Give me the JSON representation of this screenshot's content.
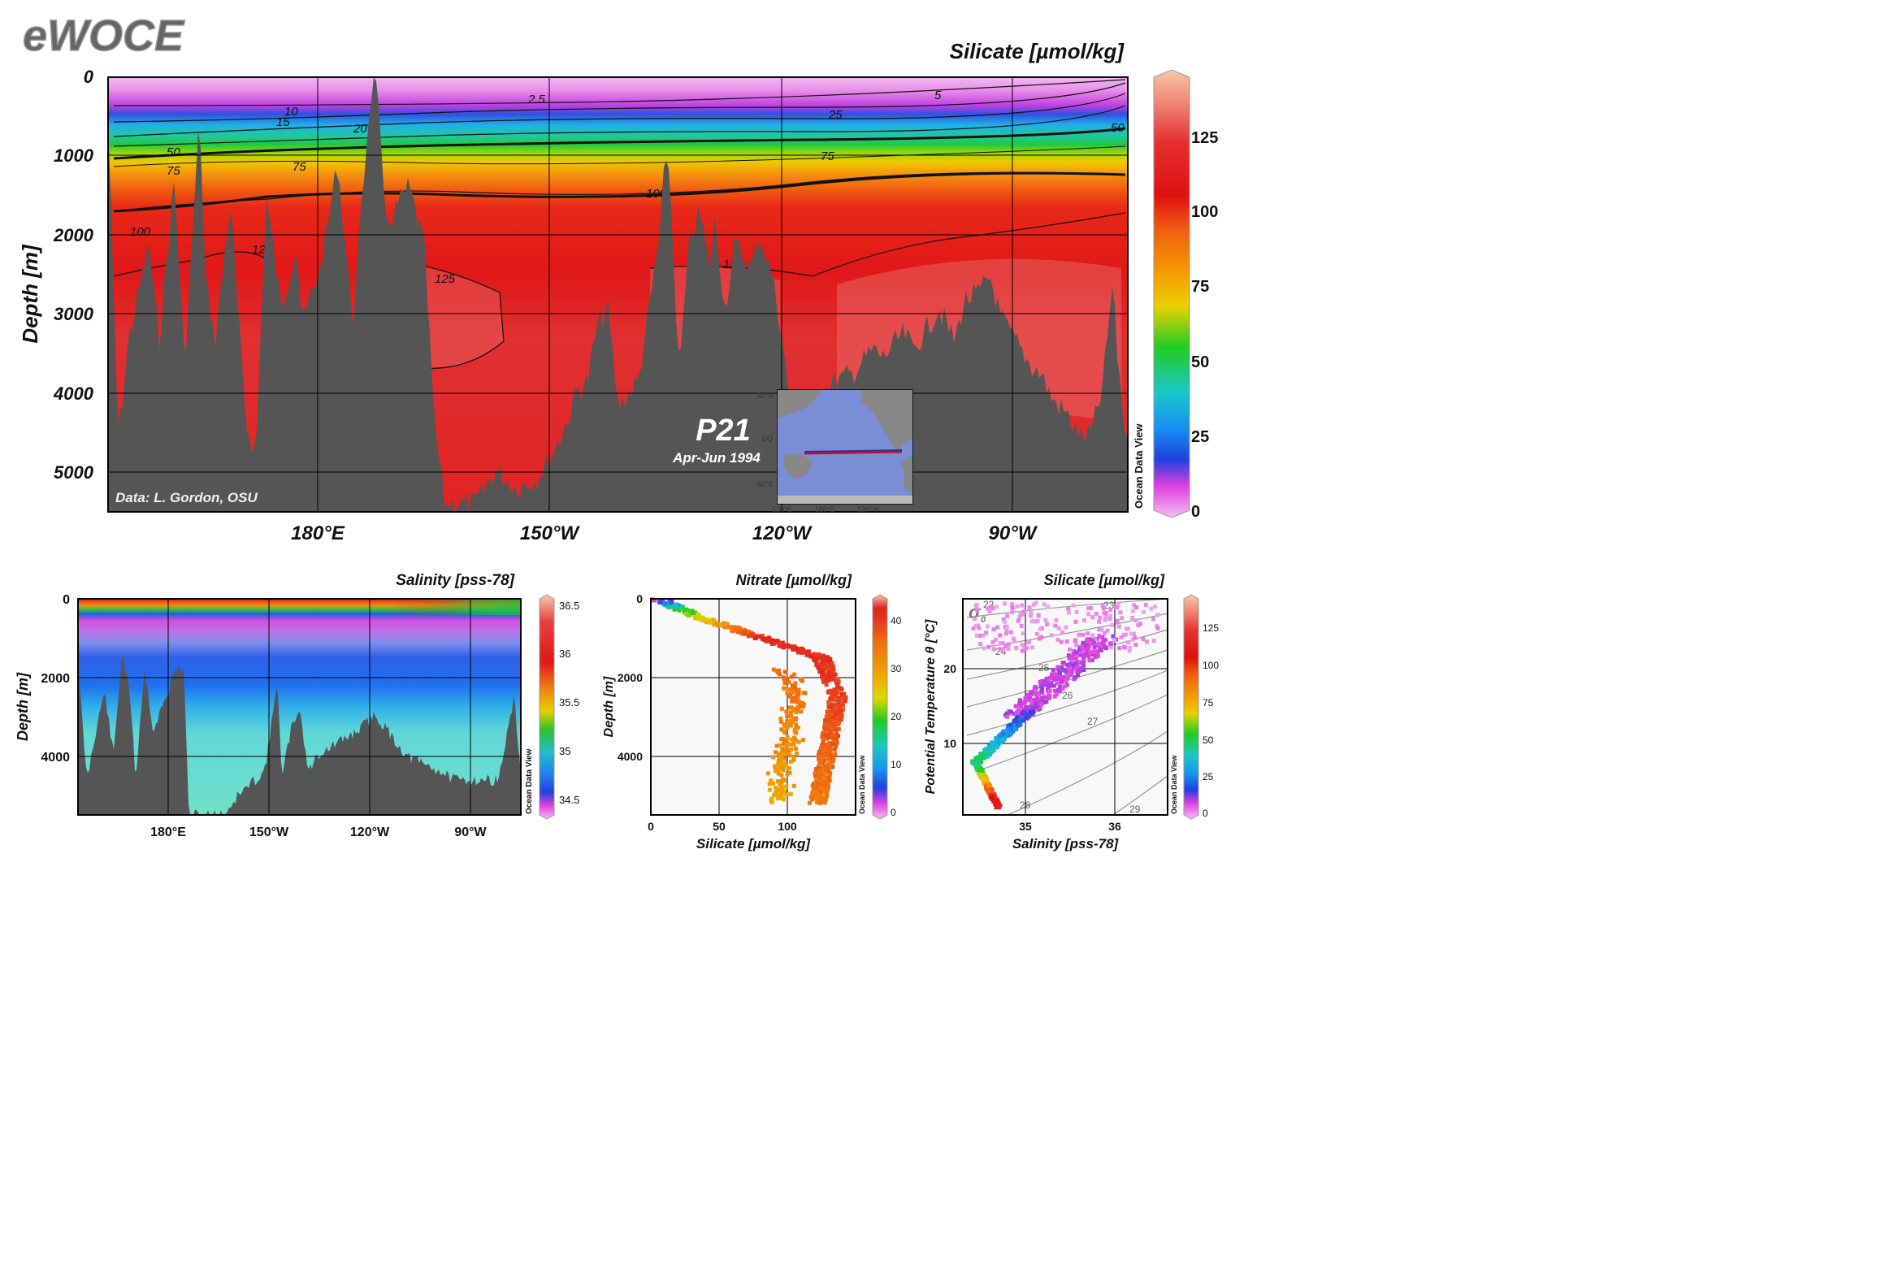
{
  "brand": "eWOCE",
  "colors": {
    "land": "#555555",
    "background": "#ffffff",
    "grid": "#000000",
    "ocean_map": "#7c8fd6"
  },
  "main_section": {
    "title": "Silicate [µmol/kg]",
    "ylabel": "Depth [m]",
    "y_ticks": [
      "0",
      "1000",
      "2000",
      "3000",
      "4000",
      "5000"
    ],
    "x_ticks": [
      "180°E",
      "150°W",
      "120°W",
      "90°W"
    ],
    "colorbar_ticks": [
      "0",
      "25",
      "50",
      "75",
      "100",
      "125"
    ],
    "colorbar_side_label": "Ocean Data View",
    "contour_labels": [
      "2.5",
      "5",
      "10",
      "15",
      "20",
      "25",
      "50",
      "75",
      "100",
      "125"
    ],
    "credit": "Data: L. Gordon, OSU",
    "section_name": "P21",
    "section_date": "Apr-Jun 1994",
    "inset_lat_labels": [
      "60°N",
      "EQ",
      "60°S"
    ],
    "inset_lon_labels": [
      "120°E",
      "180°E",
      "120°W"
    ]
  },
  "salinity_section": {
    "title": "Salinity [pss-78]",
    "ylabel": "Depth [m]",
    "y_ticks": [
      "0",
      "2000",
      "4000"
    ],
    "x_ticks": [
      "180°E",
      "150°W",
      "120°W",
      "90°W"
    ],
    "colorbar_ticks": [
      "34.5",
      "35",
      "35.5",
      "36",
      "36.5"
    ],
    "colorbar_side_label": "Ocean Data View"
  },
  "profile_plot": {
    "title": "Nitrate [µmol/kg]",
    "ylabel": "Depth [m]",
    "xlabel": "Silicate [µmol/kg]",
    "y_ticks": [
      "0",
      "2000",
      "4000"
    ],
    "x_ticks": [
      "0",
      "50",
      "100"
    ],
    "colorbar_ticks": [
      "0",
      "10",
      "20",
      "30",
      "40"
    ],
    "colorbar_side_label": "Ocean Data View"
  },
  "ts_plot": {
    "title": "Silicate [µmol/kg]",
    "ylabel": "Potential Temperature θ [°C]",
    "xlabel": "Salinity [pss-78]",
    "y_ticks": [
      "10",
      "20"
    ],
    "x_ticks": [
      "35",
      "36"
    ],
    "sigma_symbol": "σ",
    "sigma_sub": "0",
    "sigma_labels": [
      "22",
      "23",
      "24",
      "25",
      "26",
      "27",
      "28",
      "29"
    ],
    "colorbar_ticks": [
      "0",
      "25",
      "50",
      "75",
      "100",
      "125"
    ],
    "colorbar_side_label": "Ocean Data View"
  },
  "chart_data": [
    {
      "type": "heatmap",
      "title": "Silicate [µmol/kg]",
      "ylabel": "Depth [m]",
      "ylim": [
        5500,
        0
      ],
      "x_ticks": [
        "180°E",
        "150°W",
        "120°W",
        "90°W"
      ],
      "colorbar_range": [
        0,
        145
      ],
      "contour_levels": [
        2.5,
        5,
        10,
        15,
        20,
        25,
        50,
        75,
        100,
        125
      ],
      "contour_depths_m": {
        "2.5": 300,
        "10": 450,
        "20": 600,
        "25": 500,
        "50": 850,
        "75": 1100,
        "100": 1550,
        "125": 2400
      },
      "depth_profile": {
        "depth_m": [
          0,
          200,
          450,
          600,
          850,
          1100,
          1550,
          2500,
          4000,
          5500
        ],
        "silicate": [
          2,
          4,
          10,
          20,
          50,
          75,
          100,
          125,
          130,
          128
        ]
      }
    },
    {
      "type": "heatmap",
      "title": "Salinity [pss-78]",
      "ylabel": "Depth [m]",
      "ylim": [
        5500,
        0
      ],
      "colorbar_range": [
        34.3,
        36.7
      ],
      "depth_profile": {
        "depth_m": [
          0,
          100,
          200,
          300,
          600,
          1000,
          2000,
          4000
        ],
        "salinity": [
          35.9,
          35.6,
          35.0,
          34.6,
          34.3,
          34.45,
          34.65,
          34.7
        ]
      }
    },
    {
      "type": "scatter",
      "title": "Nitrate [µmol/kg]",
      "xlabel": "Silicate [µmol/kg]",
      "ylabel": "Depth [m]",
      "xlim": [
        0,
        150
      ],
      "ylim": [
        5500,
        0
      ],
      "colorbar_range": [
        0,
        45
      ],
      "points_sampled": [
        {
          "silicate": 5,
          "depth": 0,
          "nitrate": 2
        },
        {
          "silicate": 10,
          "depth": 150,
          "nitrate": 8
        },
        {
          "silicate": 20,
          "depth": 300,
          "nitrate": 18
        },
        {
          "silicate": 35,
          "depth": 500,
          "nitrate": 28
        },
        {
          "silicate": 60,
          "depth": 800,
          "nitrate": 35
        },
        {
          "silicate": 90,
          "depth": 1100,
          "nitrate": 40
        },
        {
          "silicate": 115,
          "depth": 1500,
          "nitrate": 42
        },
        {
          "silicate": 130,
          "depth": 2000,
          "nitrate": 40
        },
        {
          "silicate": 140,
          "depth": 3000,
          "nitrate": 37
        },
        {
          "silicate": 135,
          "depth": 4000,
          "nitrate": 35
        },
        {
          "silicate": 125,
          "depth": 5000,
          "nitrate": 33
        },
        {
          "silicate": 100,
          "depth": 2200,
          "nitrate": 30
        },
        {
          "silicate": 110,
          "depth": 3500,
          "nitrate": 32
        }
      ]
    },
    {
      "type": "scatter",
      "title": "Silicate [µmol/kg]",
      "xlabel": "Salinity [pss-78]",
      "ylabel": "Potential Temperature θ [°C]",
      "xlim": [
        34.3,
        36.6
      ],
      "ylim": [
        0,
        29
      ],
      "colorbar_range": [
        0,
        145
      ],
      "points_sampled": [
        {
          "salinity": 34.7,
          "theta": 1.5,
          "silicate": 130
        },
        {
          "salinity": 34.6,
          "theta": 3,
          "silicate": 110
        },
        {
          "salinity": 34.45,
          "theta": 5,
          "silicate": 70
        },
        {
          "salinity": 34.5,
          "theta": 8,
          "silicate": 35
        },
        {
          "salinity": 34.7,
          "theta": 11,
          "silicate": 18
        },
        {
          "salinity": 35.0,
          "theta": 14,
          "silicate": 8
        },
        {
          "salinity": 35.4,
          "theta": 17,
          "silicate": 5
        },
        {
          "salinity": 35.9,
          "theta": 20,
          "silicate": 3
        },
        {
          "salinity": 36.3,
          "theta": 25,
          "silicate": 2
        },
        {
          "salinity": 34.5,
          "theta": 27,
          "silicate": 2
        },
        {
          "salinity": 35.1,
          "theta": 26,
          "silicate": 2
        }
      ]
    }
  ]
}
